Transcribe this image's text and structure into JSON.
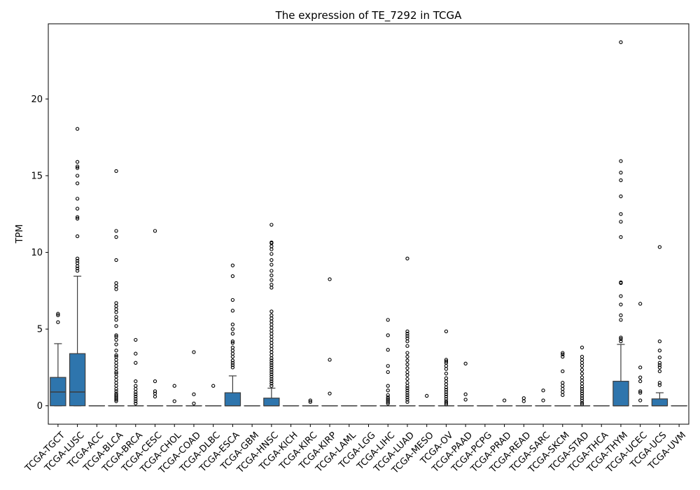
{
  "chart_data": {
    "type": "box",
    "title": "The expression of TE_7292 in TCGA",
    "xlabel": "",
    "ylabel": "TPM",
    "ylim": [
      -1.2,
      24.9
    ],
    "yticks": [
      0,
      5,
      10,
      15,
      20
    ],
    "grid": false,
    "box_color": "#2e75ad",
    "categories": [
      "TCGA-TGCT",
      "TCGA-LUSC",
      "TCGA-ACC",
      "TCGA-BLCA",
      "TCGA-BRCA",
      "TCGA-CESC",
      "TCGA-CHOL",
      "TCGA-COAD",
      "TCGA-DLBC",
      "TCGA-ESCA",
      "TCGA-GBM",
      "TCGA-HNSC",
      "TCGA-KICH",
      "TCGA-KIRC",
      "TCGA-KIRP",
      "TCGA-LAML",
      "TCGA-LGG",
      "TCGA-LIHC",
      "TCGA-LUAD",
      "TCGA-MESO",
      "TCGA-OV",
      "TCGA-PAAD",
      "TCGA-PCPG",
      "TCGA-PRAD",
      "TCGA-READ",
      "TCGA-SARC",
      "TCGA-SKCM",
      "TCGA-STAD",
      "TCGA-THCA",
      "TCGA-THYM",
      "TCGA-UCEC",
      "TCGA-UCS",
      "TCGA-UVM"
    ],
    "boxes": [
      {
        "q1": 0,
        "median": 0.9,
        "q3": 1.85,
        "whislo": 0,
        "whishi": 4.05,
        "fliers": [
          5.45,
          5.9,
          6.0
        ]
      },
      {
        "q1": 0,
        "median": 0.9,
        "q3": 3.4,
        "whislo": 0,
        "whishi": 8.45,
        "fliers": [
          8.8,
          8.95,
          9.1,
          9.3,
          9.45,
          9.6,
          11.05,
          12.2,
          12.3,
          12.85,
          13.5,
          14.5,
          15.0,
          15.5,
          15.6,
          15.9,
          18.05
        ]
      },
      {
        "q1": 0,
        "median": 0,
        "q3": 0,
        "whislo": 0,
        "whishi": 0,
        "fliers": []
      },
      {
        "q1": 0,
        "median": 0,
        "q3": 0,
        "whislo": 0,
        "whishi": 0,
        "fliers": [
          0.3,
          0.4,
          0.5,
          0.6,
          0.7,
          0.8,
          0.95,
          1.1,
          1.3,
          1.5,
          1.7,
          1.9,
          2.1,
          2.2,
          2.4,
          2.6,
          2.8,
          3.0,
          3.2,
          3.3,
          3.6,
          4.0,
          4.3,
          4.5,
          4.6,
          5.2,
          5.6,
          5.8,
          6.1,
          6.3,
          6.5,
          6.7,
          7.6,
          7.8,
          8.0,
          9.5,
          11.0,
          11.4,
          15.3
        ]
      },
      {
        "q1": 0,
        "median": 0,
        "q3": 0,
        "whislo": 0,
        "whishi": 0,
        "fliers": [
          0.15,
          0.3,
          0.45,
          0.6,
          0.75,
          0.9,
          1.1,
          1.3,
          1.6,
          2.8,
          3.4,
          4.3
        ]
      },
      {
        "q1": 0,
        "median": 0,
        "q3": 0,
        "whislo": 0,
        "whishi": 0,
        "fliers": [
          0.6,
          0.8,
          0.95,
          1.6,
          11.4
        ]
      },
      {
        "q1": 0,
        "median": 0,
        "q3": 0,
        "whislo": 0,
        "whishi": 0,
        "fliers": [
          0.3,
          1.3
        ]
      },
      {
        "q1": 0,
        "median": 0,
        "q3": 0,
        "whislo": 0,
        "whishi": 0,
        "fliers": [
          0.15,
          0.75,
          3.5
        ]
      },
      {
        "q1": 0,
        "median": 0,
        "q3": 0,
        "whislo": 0,
        "whishi": 0,
        "fliers": [
          1.3
        ]
      },
      {
        "q1": 0,
        "median": 0,
        "q3": 0.85,
        "whislo": 0,
        "whishi": 1.95,
        "fliers": [
          2.5,
          2.65,
          2.8,
          2.95,
          3.2,
          3.4,
          3.6,
          3.8,
          4.1,
          4.2,
          4.7,
          5.0,
          5.3,
          6.2,
          6.9,
          8.45,
          9.15
        ]
      },
      {
        "q1": 0,
        "median": 0,
        "q3": 0,
        "whislo": 0,
        "whishi": 0,
        "fliers": []
      },
      {
        "q1": 0,
        "median": 0,
        "q3": 0.5,
        "whislo": 0,
        "whishi": 1.15,
        "fliers": [
          1.3,
          1.45,
          1.6,
          1.75,
          1.9,
          2.05,
          2.2,
          2.35,
          2.5,
          2.65,
          2.8,
          2.95,
          3.1,
          3.3,
          3.5,
          3.7,
          3.9,
          4.1,
          4.3,
          4.5,
          4.7,
          4.9,
          5.1,
          5.3,
          5.5,
          5.7,
          5.9,
          6.15,
          7.7,
          7.9,
          8.2,
          8.5,
          8.8,
          9.2,
          9.5,
          9.9,
          10.2,
          10.4,
          10.6,
          10.65,
          11.8
        ]
      },
      {
        "q1": 0,
        "median": 0,
        "q3": 0,
        "whislo": 0,
        "whishi": 0,
        "fliers": []
      },
      {
        "q1": 0,
        "median": 0,
        "q3": 0,
        "whislo": 0,
        "whishi": 0,
        "fliers": [
          0.25,
          0.35
        ]
      },
      {
        "q1": 0,
        "median": 0,
        "q3": 0,
        "whislo": 0,
        "whishi": 0,
        "fliers": [
          0.8,
          3.0,
          8.25
        ]
      },
      {
        "q1": 0,
        "median": 0,
        "q3": 0,
        "whislo": 0,
        "whishi": 0,
        "fliers": []
      },
      {
        "q1": 0,
        "median": 0,
        "q3": 0,
        "whislo": 0,
        "whishi": 0,
        "fliers": []
      },
      {
        "q1": 0,
        "median": 0,
        "q3": 0,
        "whislo": 0,
        "whishi": 0,
        "fliers": [
          0.15,
          0.25,
          0.35,
          0.45,
          0.55,
          0.7,
          1.0,
          1.3,
          2.2,
          2.6,
          3.65,
          4.6,
          5.6
        ]
      },
      {
        "q1": 0,
        "median": 0,
        "q3": 0,
        "whislo": 0,
        "whishi": 0,
        "fliers": [
          0.25,
          0.4,
          0.55,
          0.7,
          0.85,
          1.0,
          1.15,
          1.3,
          1.5,
          1.75,
          2.0,
          2.2,
          2.45,
          2.7,
          2.95,
          3.2,
          3.45,
          3.9,
          4.2,
          4.4,
          4.55,
          4.7,
          4.85,
          9.6
        ]
      },
      {
        "q1": 0,
        "median": 0,
        "q3": 0,
        "whislo": 0,
        "whishi": 0,
        "fliers": [
          0.65
        ]
      },
      {
        "q1": 0,
        "median": 0,
        "q3": 0,
        "whislo": 0,
        "whishi": 0,
        "fliers": [
          0.1,
          0.2,
          0.3,
          0.45,
          0.6,
          0.75,
          0.9,
          1.05,
          1.2,
          1.4,
          1.6,
          1.8,
          2.1,
          2.4,
          2.6,
          2.8,
          2.9,
          3.0,
          4.85
        ]
      },
      {
        "q1": 0,
        "median": 0,
        "q3": 0,
        "whislo": 0,
        "whishi": 0,
        "fliers": [
          0.4,
          0.75,
          2.75
        ]
      },
      {
        "q1": 0,
        "median": 0,
        "q3": 0,
        "whislo": 0,
        "whishi": 0,
        "fliers": []
      },
      {
        "q1": 0,
        "median": 0,
        "q3": 0,
        "whislo": 0,
        "whishi": 0,
        "fliers": [
          0.35
        ]
      },
      {
        "q1": 0,
        "median": 0,
        "q3": 0,
        "whislo": 0,
        "whishi": 0,
        "fliers": [
          0.3,
          0.5
        ]
      },
      {
        "q1": 0,
        "median": 0,
        "q3": 0,
        "whislo": 0,
        "whishi": 0,
        "fliers": [
          0.35,
          1.0
        ]
      },
      {
        "q1": 0,
        "median": 0,
        "q3": 0,
        "whislo": 0,
        "whishi": 0,
        "fliers": [
          0.7,
          0.9,
          1.1,
          1.3,
          1.5,
          2.25,
          3.2,
          3.35,
          3.45
        ]
      },
      {
        "q1": 0,
        "median": 0,
        "q3": 0,
        "whislo": 0,
        "whishi": 0,
        "fliers": [
          0.1,
          0.2,
          0.35,
          0.5,
          0.65,
          0.8,
          0.95,
          1.1,
          1.25,
          1.45,
          1.65,
          1.85,
          2.1,
          2.35,
          2.6,
          2.8,
          3.0,
          3.2,
          3.8
        ]
      },
      {
        "q1": 0,
        "median": 0,
        "q3": 0,
        "whislo": 0,
        "whishi": 0,
        "fliers": []
      },
      {
        "q1": 0,
        "median": 0,
        "q3": 1.6,
        "whislo": 0,
        "whishi": 4.0,
        "fliers": [
          4.2,
          4.35,
          4.45,
          5.6,
          5.9,
          6.6,
          7.15,
          8.0,
          8.05,
          11.0,
          12.0,
          12.5,
          13.65,
          14.7,
          15.2,
          15.95,
          23.7
        ]
      },
      {
        "q1": 0,
        "median": 0,
        "q3": 0,
        "whislo": 0,
        "whishi": 0,
        "fliers": [
          0.35,
          0.85,
          0.95,
          1.6,
          1.85,
          2.5,
          6.65
        ]
      },
      {
        "q1": 0,
        "median": 0,
        "q3": 0.45,
        "whislo": 0,
        "whishi": 0.85,
        "fliers": [
          1.35,
          1.5,
          2.25,
          2.5,
          2.65,
          2.8,
          3.15,
          3.6,
          4.2,
          10.35
        ]
      },
      {
        "q1": 0,
        "median": 0,
        "q3": 0,
        "whislo": 0,
        "whishi": 0,
        "fliers": []
      }
    ]
  }
}
